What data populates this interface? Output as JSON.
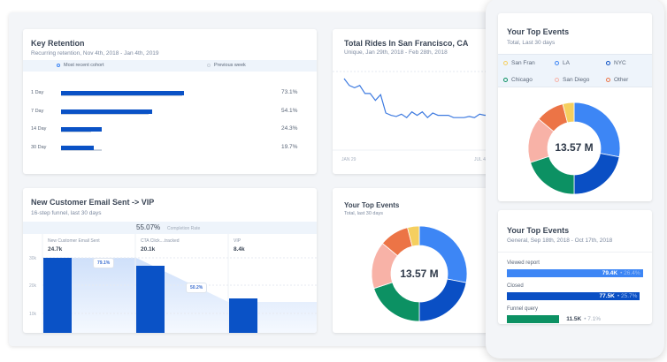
{
  "retention": {
    "title": "Key Retention",
    "subtitle": "Recurring retention, Nov 4th, 2018 - Jan 4th, 2019",
    "legend": [
      "Most recent cohort",
      "Previous week"
    ],
    "rows": [
      {
        "label": "1 Day",
        "value": 73.1,
        "text": "73.1%",
        "prev": 72
      },
      {
        "label": "7 Day",
        "value": 54.1,
        "text": "54.1%",
        "prev": 52
      },
      {
        "label": "14 Day",
        "value": 24.3,
        "text": "24.3%",
        "prev": 18
      },
      {
        "label": "30 Day",
        "value": 19.7,
        "text": "19.7%",
        "prev": 24
      }
    ]
  },
  "rides": {
    "title": "Total Rides In San Francisco, CA",
    "subtitle": "Unique, Jan 29th, 2018 - Feb 28th, 2018",
    "x_ticks": [
      "JAN 29",
      "JUL 4"
    ],
    "series": [
      80,
      74,
      72,
      74,
      67,
      67,
      61,
      66,
      50,
      48,
      47,
      49,
      46,
      51,
      48,
      51,
      46,
      50,
      48,
      48,
      48,
      46,
      46,
      46,
      47,
      46,
      49,
      48,
      49
    ]
  },
  "funnel": {
    "title": "New Customer Email Sent -> VIP",
    "subtitle": "16-step funnel, last 30 days",
    "completion": "55.07%",
    "completion_label": "Completion Rate",
    "y_ticks": [
      "30k",
      "20k",
      "10k"
    ],
    "steps": [
      {
        "label": "New Customer Email Sent",
        "value": "24.7k",
        "height": 0.97
      },
      {
        "label": "CTA Click....tracked",
        "value": "20.1k",
        "height": 0.86
      },
      {
        "label": "VIP",
        "value": "8.4k",
        "height": 0.44
      }
    ],
    "conversions": [
      "79.1%",
      "50.2%"
    ]
  },
  "top_events": {
    "title": "Your Top Events",
    "subtitle": "Total, last 30 days",
    "total": "13.57 M"
  },
  "mobile_events": {
    "title": "Your Top Events",
    "subtitle": "Total, Last 30 days",
    "total": "13.57 M",
    "legend": [
      {
        "label": "San Fran",
        "color": "#f5cf5f"
      },
      {
        "label": "LA",
        "color": "#3d86f5"
      },
      {
        "label": "NYC",
        "color": "#0a4fc4"
      },
      {
        "label": "Chicago",
        "color": "#0c9163"
      },
      {
        "label": "San Diego",
        "color": "#f8b2a7"
      },
      {
        "label": "Other",
        "color": "#ec7446"
      }
    ]
  },
  "donut": [
    {
      "label": "LA",
      "value": 28,
      "color": "#3d86f5"
    },
    {
      "label": "NYC",
      "value": 22,
      "color": "#0a4fc4"
    },
    {
      "label": "Chicago",
      "value": 20,
      "color": "#0c9163"
    },
    {
      "label": "San Diego",
      "value": 16,
      "color": "#f8b2a7"
    },
    {
      "label": "Other",
      "value": 10,
      "color": "#ec7446"
    },
    {
      "label": "San Fran",
      "value": 4,
      "color": "#f5cf5f"
    }
  ],
  "general_events": {
    "title": "Your Top Events",
    "subtitle": "General, Sep 18th, 2018 - Oct 17th, 2018",
    "rows": [
      {
        "label": "Viewed report",
        "count": "79.4K",
        "pct": "• 26.4%",
        "fill": 0.96,
        "color": "#3d86f5"
      },
      {
        "label": "Closed",
        "count": "77.5K",
        "pct": "• 25.7%",
        "fill": 0.94,
        "color": "#0a4fc4"
      },
      {
        "label": "Funnel query",
        "count": "11.5K",
        "pct": "• 7.1%",
        "fill": 0.37,
        "color": "#0c9163"
      }
    ]
  }
}
